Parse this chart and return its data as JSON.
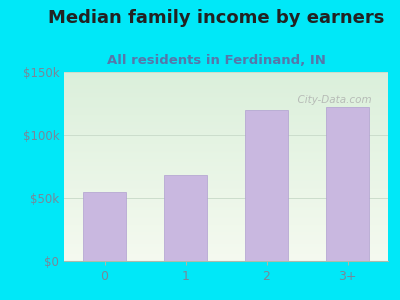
{
  "title": "Median family income by earners",
  "subtitle": "All residents in Ferdinand, IN",
  "categories": [
    "0",
    "1",
    "2",
    "3+"
  ],
  "values": [
    55000,
    68000,
    120000,
    122000
  ],
  "bar_color": "#c9b8e0",
  "bar_edgecolor": "#b0a0d0",
  "ylim": [
    0,
    150000
  ],
  "ytick_vals": [
    0,
    50000,
    100000,
    150000
  ],
  "ytick_labels": [
    "$0",
    "$50k",
    "$100k",
    "$150k"
  ],
  "title_fontsize": 13,
  "subtitle_fontsize": 9.5,
  "title_color": "#222222",
  "subtitle_color": "#5577aa",
  "bg_outer": "#00e8f8",
  "watermark": "  City-Data.com",
  "tick_color": "#778899",
  "grid_color": "#ccddcc"
}
